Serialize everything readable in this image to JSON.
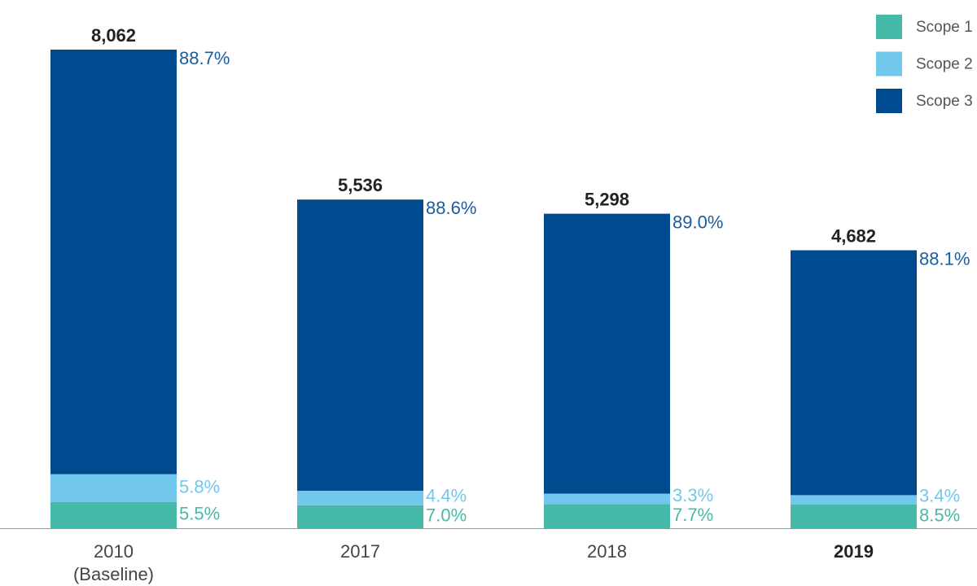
{
  "chart_data": {
    "type": "stacked-bar",
    "categories": [
      "2010\n(Baseline)",
      "2017",
      "2018",
      "2019"
    ],
    "totals": {
      "values": [
        8062,
        5536,
        5298,
        4682
      ],
      "value_labels": [
        "8,062",
        "5,536",
        "5,298",
        "4,682"
      ]
    },
    "series": [
      {
        "name": "Scope 1",
        "color": "#46b9a8",
        "label_color": "#46b9a8",
        "values": [
          5.5,
          7.0,
          7.7,
          8.5
        ],
        "value_labels": [
          "5.5%",
          "7.0%",
          "7.7%",
          "8.5%"
        ]
      },
      {
        "name": "Scope 2",
        "color": "#72c7ec",
        "label_color": "#72c7ec",
        "values": [
          5.8,
          4.4,
          3.3,
          3.4
        ],
        "value_labels": [
          "5.8%",
          "4.4%",
          "3.3%",
          "3.4%"
        ]
      },
      {
        "name": "Scope 3",
        "color": "#004a8f",
        "label_color": "#1b5c9c",
        "values": [
          88.7,
          88.6,
          89.0,
          88.1
        ],
        "value_labels": [
          "88.7%",
          "88.6%",
          "89.0%",
          "88.1%"
        ]
      }
    ],
    "legend": "top-right"
  }
}
